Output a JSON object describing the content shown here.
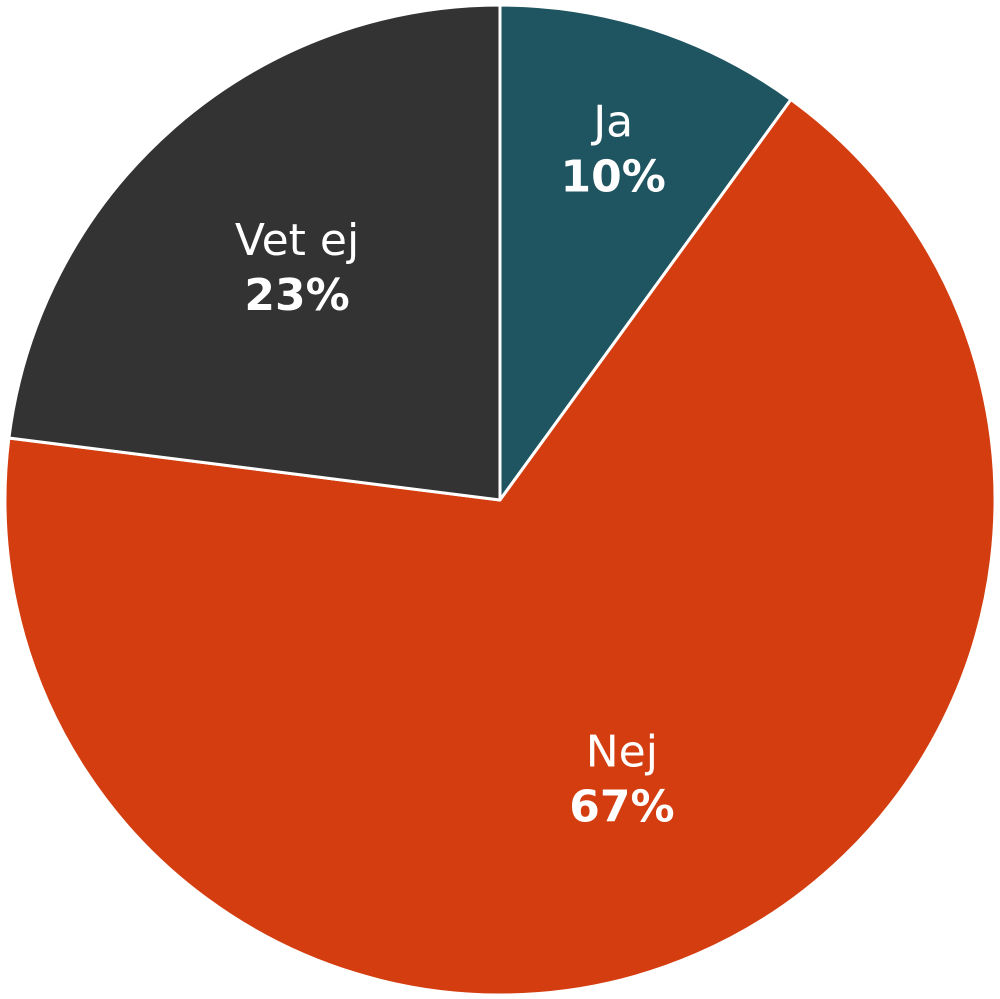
{
  "chart_data": {
    "type": "pie",
    "categories": [
      "Ja",
      "Nej",
      "Vet ej"
    ],
    "values": [
      10,
      67,
      23
    ],
    "value_labels": [
      "10%",
      "67%",
      "23%"
    ],
    "colors": [
      "#1f5560",
      "#d43d0f",
      "#333333"
    ]
  }
}
